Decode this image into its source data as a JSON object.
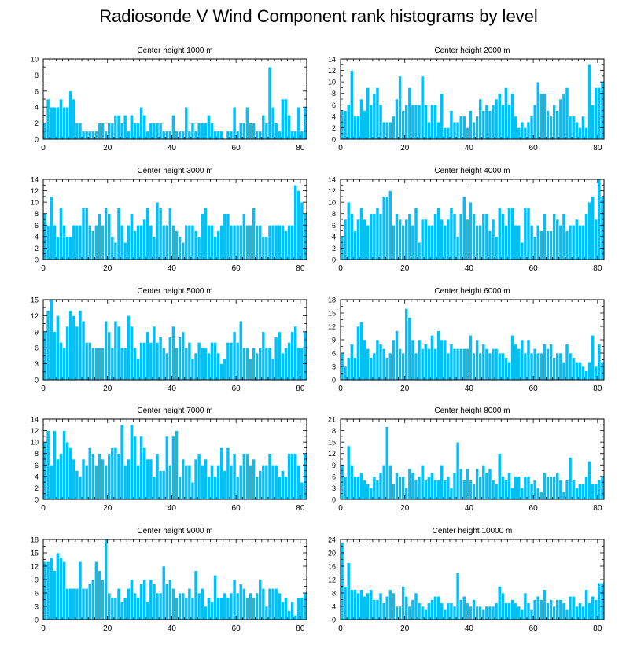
{
  "title": "Radiosonde V Wind Component rank histograms by level",
  "colors": {
    "bar": "#00BFFF",
    "bar_edge": "#ffffff",
    "axis": "#000000"
  },
  "chart_data": [
    {
      "type": "bar",
      "title": "Center height 1000 m",
      "xlim": [
        0,
        82
      ],
      "ylim": [
        0,
        10
      ],
      "yticks": [
        0,
        2,
        4,
        6,
        8,
        10
      ],
      "xticks": [
        0,
        20,
        40,
        60,
        80
      ],
      "values": [
        2,
        5,
        4,
        4,
        4,
        5,
        4,
        4,
        6,
        5,
        2,
        2,
        1,
        1,
        1,
        1,
        1,
        2,
        2,
        1,
        2,
        2,
        3,
        3,
        2,
        3,
        1,
        3,
        2,
        2,
        4,
        3,
        1,
        2,
        2,
        2,
        2,
        1,
        1,
        1,
        3,
        1,
        1,
        1,
        4,
        1,
        2,
        1,
        2,
        2,
        2,
        3,
        2,
        1,
        1,
        1,
        0,
        1,
        1,
        4,
        1,
        2,
        2,
        4,
        2,
        2,
        1,
        1,
        3,
        2,
        9,
        4,
        2,
        1,
        5,
        5,
        3,
        1,
        1,
        4,
        1,
        4
      ]
    },
    {
      "type": "bar",
      "title": "Center height 2000 m",
      "xlim": [
        0,
        82
      ],
      "ylim": [
        0,
        14
      ],
      "yticks": [
        0,
        2,
        4,
        6,
        8,
        10,
        12,
        14
      ],
      "xticks": [
        0,
        20,
        40,
        60,
        80
      ],
      "values": [
        5,
        5,
        6,
        12,
        4,
        4,
        7,
        5,
        9,
        6,
        8,
        9,
        6,
        3,
        3,
        3,
        4,
        7,
        11,
        5,
        6,
        9,
        6,
        6,
        6,
        11,
        6,
        3,
        6,
        6,
        3,
        8,
        2,
        2,
        5,
        3,
        3,
        4,
        4,
        2,
        5,
        3,
        4,
        7,
        5,
        6,
        5,
        6,
        7,
        8,
        6,
        9,
        6,
        8,
        4,
        2,
        3,
        2,
        3,
        4,
        6,
        10,
        8,
        8,
        5,
        4,
        6,
        5,
        7,
        8,
        9,
        4,
        4,
        3,
        2,
        4,
        2,
        13,
        6,
        9,
        9,
        10
      ]
    },
    {
      "type": "bar",
      "title": "Center height 3000 m",
      "xlim": [
        0,
        82
      ],
      "ylim": [
        0,
        14
      ],
      "yticks": [
        0,
        2,
        4,
        6,
        8,
        10,
        12,
        14
      ],
      "xticks": [
        0,
        20,
        40,
        60,
        80
      ],
      "values": [
        8,
        6,
        11,
        6,
        4,
        9,
        6,
        4,
        4,
        6,
        6,
        6,
        9,
        9,
        6,
        5,
        6,
        8,
        6,
        9,
        8,
        4,
        3,
        9,
        6,
        3,
        6,
        8,
        5,
        6,
        6,
        7,
        9,
        6,
        4,
        10,
        9,
        6,
        6,
        9,
        6,
        5,
        4,
        3,
        6,
        6,
        6,
        5,
        4,
        8,
        9,
        6,
        6,
        4,
        5,
        6,
        8,
        8,
        6,
        6,
        6,
        6,
        8,
        6,
        6,
        9,
        6,
        6,
        4,
        4,
        6,
        6,
        6,
        6,
        6,
        5,
        6,
        6,
        13,
        12,
        10,
        8
      ]
    },
    {
      "type": "bar",
      "title": "Center height 4000 m",
      "xlim": [
        0,
        82
      ],
      "ylim": [
        0,
        14
      ],
      "yticks": [
        0,
        2,
        4,
        6,
        8,
        10,
        12,
        14
      ],
      "xticks": [
        0,
        20,
        40,
        60,
        80
      ],
      "values": [
        4,
        7,
        10,
        8,
        5,
        7,
        9,
        7,
        6,
        8,
        8,
        9,
        8,
        11,
        11,
        12,
        6,
        8,
        7,
        6,
        7,
        8,
        6,
        9,
        3,
        7,
        7,
        6,
        6,
        8,
        9,
        7,
        6,
        7,
        9,
        8,
        4,
        8,
        11,
        7,
        10,
        8,
        6,
        6,
        8,
        8,
        5,
        7,
        4,
        9,
        8,
        6,
        9,
        9,
        6,
        6,
        3,
        9,
        9,
        6,
        4,
        6,
        5,
        8,
        5,
        5,
        8,
        7,
        6,
        8,
        5,
        6,
        6,
        7,
        6,
        6,
        8,
        10,
        11,
        7,
        14,
        11
      ]
    },
    {
      "type": "bar",
      "title": "Center height 5000 m",
      "xlim": [
        0,
        82
      ],
      "ylim": [
        0,
        15
      ],
      "yticks": [
        0,
        3,
        6,
        9,
        12,
        15
      ],
      "xticks": [
        0,
        20,
        40,
        60,
        80
      ],
      "values": [
        9,
        13,
        15,
        9,
        12,
        7,
        6,
        10,
        13,
        12,
        10,
        13,
        11,
        7,
        7,
        6,
        6,
        6,
        6,
        11,
        9,
        6,
        11,
        10,
        6,
        6,
        12,
        10,
        6,
        4,
        7,
        7,
        9,
        7,
        10,
        7,
        8,
        6,
        5,
        8,
        10,
        6,
        8,
        9,
        6,
        7,
        4,
        5,
        7,
        6,
        6,
        5,
        7,
        7,
        5,
        3,
        4,
        7,
        7,
        9,
        7,
        11,
        6,
        6,
        4,
        6,
        5,
        6,
        9,
        6,
        6,
        4,
        8,
        9,
        5,
        6,
        7,
        9,
        10,
        6,
        6,
        9
      ]
    },
    {
      "type": "bar",
      "title": "Center height 6000 m",
      "xlim": [
        0,
        82
      ],
      "ylim": [
        0,
        18
      ],
      "yticks": [
        0,
        3,
        6,
        9,
        12,
        15,
        18
      ],
      "xticks": [
        0,
        20,
        40,
        60,
        80
      ],
      "values": [
        6,
        3,
        5,
        8,
        5,
        12,
        13,
        9,
        7,
        5,
        6,
        9,
        8,
        7,
        5,
        6,
        9,
        11,
        7,
        6,
        16,
        14,
        9,
        6,
        9,
        7,
        8,
        7,
        10,
        7,
        11,
        9,
        9,
        6,
        8,
        7,
        7,
        7,
        7,
        7,
        10,
        6,
        9,
        6,
        8,
        7,
        6,
        7,
        7,
        6,
        6,
        5,
        4,
        10,
        8,
        7,
        9,
        6,
        9,
        6,
        7,
        6,
        6,
        8,
        7,
        8,
        5,
        6,
        6,
        4,
        8,
        6,
        5,
        4,
        4,
        3,
        2,
        4,
        10,
        3,
        8,
        4
      ]
    },
    {
      "type": "bar",
      "title": "Center height 7000 m",
      "xlim": [
        0,
        82
      ],
      "ylim": [
        0,
        14
      ],
      "yticks": [
        0,
        2,
        4,
        6,
        8,
        10,
        12,
        14
      ],
      "xticks": [
        0,
        20,
        40,
        60,
        80
      ],
      "values": [
        10,
        12,
        6,
        12,
        7,
        8,
        12,
        10,
        9,
        7,
        5,
        4,
        7,
        6,
        9,
        8,
        6,
        8,
        7,
        6,
        8,
        9,
        9,
        8,
        13,
        6,
        7,
        13,
        11,
        6,
        11,
        9,
        7,
        7,
        4,
        8,
        5,
        5,
        11,
        6,
        11,
        12,
        4,
        7,
        6,
        6,
        3,
        7,
        8,
        6,
        7,
        4,
        6,
        4,
        6,
        9,
        5,
        9,
        6,
        8,
        4,
        6,
        8,
        8,
        6,
        7,
        4,
        5,
        6,
        6,
        8,
        6,
        6,
        4,
        5,
        4,
        8,
        8,
        8,
        6,
        3,
        8
      ]
    },
    {
      "type": "bar",
      "title": "Center height 8000 m",
      "xlim": [
        0,
        82
      ],
      "ylim": [
        0,
        21
      ],
      "yticks": [
        0,
        3,
        6,
        9,
        12,
        15,
        18,
        21
      ],
      "xticks": [
        0,
        20,
        40,
        60,
        80
      ],
      "values": [
        9,
        6,
        14,
        9,
        6,
        6,
        7,
        5,
        4,
        3,
        6,
        5,
        7,
        9,
        19,
        9,
        4,
        7,
        6,
        6,
        3,
        8,
        7,
        5,
        6,
        9,
        5,
        6,
        7,
        5,
        5,
        9,
        5,
        6,
        3,
        7,
        15,
        8,
        5,
        8,
        5,
        4,
        8,
        6,
        9,
        7,
        8,
        5,
        4,
        12,
        6,
        5,
        7,
        3,
        6,
        6,
        3,
        6,
        6,
        4,
        5,
        3,
        2,
        7,
        6,
        6,
        6,
        7,
        5,
        2,
        5,
        11,
        5,
        3,
        4,
        4,
        6,
        10,
        4,
        4,
        5,
        6
      ]
    },
    {
      "type": "bar",
      "title": "Center height 9000 m",
      "xlim": [
        0,
        82
      ],
      "ylim": [
        0,
        18
      ],
      "yticks": [
        0,
        3,
        6,
        9,
        12,
        15,
        18
      ],
      "xticks": [
        0,
        20,
        40,
        60,
        80
      ],
      "values": [
        13,
        13,
        14,
        11,
        15,
        14,
        13,
        7,
        7,
        7,
        7,
        13,
        7,
        7,
        8,
        9,
        13,
        11,
        9,
        18,
        6,
        5,
        5,
        7,
        4,
        5,
        7,
        9,
        6,
        5,
        8,
        9,
        4,
        9,
        8,
        6,
        6,
        12,
        8,
        9,
        7,
        5,
        6,
        6,
        5,
        7,
        5,
        11,
        6,
        7,
        3,
        5,
        4,
        10,
        5,
        5,
        6,
        5,
        6,
        9,
        6,
        8,
        7,
        5,
        6,
        5,
        6,
        9,
        7,
        3,
        7,
        7,
        7,
        6,
        4,
        5,
        2,
        4,
        1,
        5,
        5,
        6
      ]
    },
    {
      "type": "bar",
      "title": "Center height 10000 m",
      "xlim": [
        0,
        82
      ],
      "ylim": [
        0,
        24
      ],
      "yticks": [
        0,
        4,
        8,
        12,
        16,
        20,
        24
      ],
      "xticks": [
        0,
        20,
        40,
        60,
        80
      ],
      "values": [
        23,
        10,
        17,
        9,
        9,
        8,
        9,
        7,
        8,
        9,
        6,
        6,
        8,
        5,
        7,
        9,
        8,
        4,
        4,
        10,
        7,
        4,
        6,
        8,
        5,
        4,
        3,
        5,
        6,
        7,
        7,
        5,
        3,
        5,
        5,
        4,
        14,
        6,
        7,
        5,
        4,
        6,
        4,
        4,
        3,
        4,
        4,
        4,
        5,
        10,
        8,
        5,
        5,
        6,
        5,
        4,
        3,
        8,
        5,
        3,
        6,
        7,
        6,
        9,
        5,
        6,
        4,
        6,
        6,
        5,
        3,
        7,
        7,
        4,
        5,
        4,
        9,
        5,
        7,
        6,
        11,
        11
      ]
    }
  ]
}
